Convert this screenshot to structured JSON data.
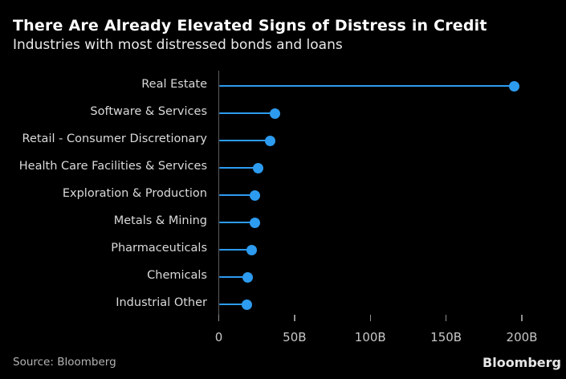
{
  "header": {
    "title": "There Are Already Elevated Signs of Distress in Credit",
    "subtitle": "Industries with most distressed bonds and loans"
  },
  "chart_data": {
    "type": "lollipop",
    "orientation": "horizontal",
    "title": "There Are Already Elevated Signs of Distress in Credit",
    "subtitle": "Industries with most distressed bonds and loans",
    "categories": [
      "Real Estate",
      "Software & Services",
      "Retail - Consumer Discretionary",
      "Health Care Facilities & Services",
      "Exploration & Production",
      "Metals & Mining",
      "Pharmaceuticals",
      "Chemicals",
      "Industrial Other"
    ],
    "values": [
      195,
      37,
      34,
      26,
      24,
      24,
      21.5,
      19,
      18.5
    ],
    "value_unit": "billions USD",
    "xlabel": "",
    "ylabel": "",
    "xlim": [
      0,
      218
    ],
    "xticks": {
      "values": [
        0,
        50,
        100,
        150,
        200
      ],
      "labels": [
        "0",
        "50B",
        "100B",
        "150B",
        "200B"
      ]
    },
    "grid": false,
    "legend": "none",
    "accent_color": "#2D9BF0"
  },
  "colors": {
    "background": "#000000",
    "title_text": "#ffffff",
    "label_text": "#dadada",
    "tick_text": "#c7c7c7",
    "axis_line": "#5c5c5c",
    "accent": "#2D9BF0"
  },
  "footer": {
    "source": "Source: Bloomberg",
    "logo": "Bloomberg"
  }
}
